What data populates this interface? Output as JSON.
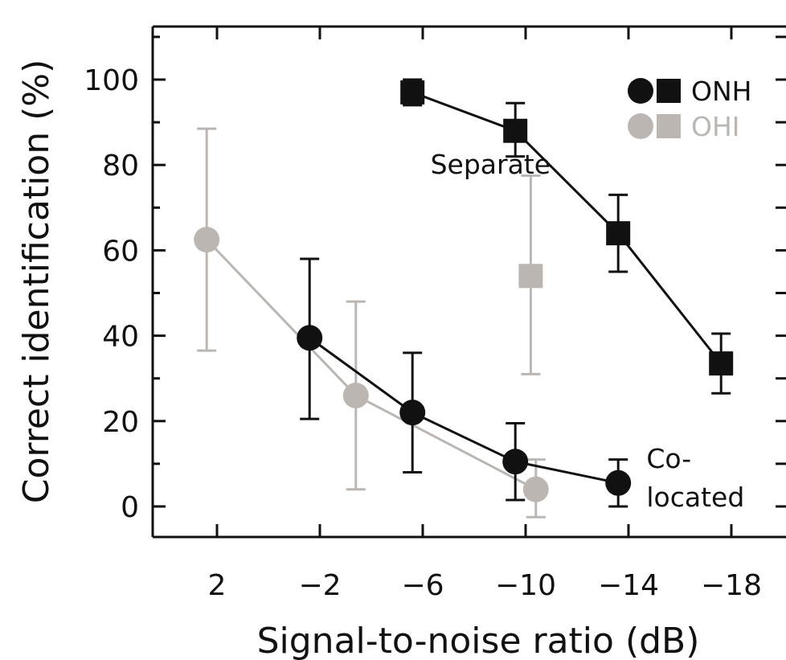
{
  "chart_data": {
    "type": "line",
    "xlabel": "Signal-to-noise ratio (dB)",
    "ylabel": "Correct identification (%)",
    "x_ticks": [
      "2",
      "−2",
      "−6",
      "−10",
      "−14",
      "−18"
    ],
    "y_ticks": [
      "0",
      "20",
      "40",
      "60",
      "80",
      "100"
    ],
    "xlim": [
      4,
      -20
    ],
    "ylim": [
      -8,
      112
    ],
    "x_axis_reversed": true,
    "legend": {
      "placement": "top-right",
      "entries": [
        {
          "label": "ONH",
          "color": "#111111"
        },
        {
          "label": "OHI",
          "color": "#bcb6b3"
        }
      ]
    },
    "annotations": [
      {
        "text": "Separate",
        "x": -6.3,
        "y": 78
      },
      {
        "text": "Co-",
        "x": -14.7,
        "y": 9
      },
      {
        "text": "located",
        "x": -14.7,
        "y": 0
      }
    ],
    "series": [
      {
        "group": "OHI",
        "condition": "Co-located",
        "marker": "circle",
        "color": "#bcb6b3",
        "points": [
          {
            "x": 2.4,
            "y": 62.5,
            "err_low": 36.5,
            "err_high": 88.5
          },
          {
            "x": -3.4,
            "y": 26,
            "err_low": 4,
            "err_high": 48
          },
          {
            "x": -10.4,
            "y": 4,
            "err_low": -2.5,
            "err_high": 11
          }
        ]
      },
      {
        "group": "OHI",
        "condition": "Separate",
        "marker": "square",
        "color": "#bcb6b3",
        "points": [
          {
            "x": -10.2,
            "y": 54,
            "err_low": 31,
            "err_high": 77.5
          }
        ]
      },
      {
        "group": "ONH",
        "condition": "Co-located",
        "marker": "circle",
        "color": "#111111",
        "points": [
          {
            "x": -1.6,
            "y": 39.5,
            "err_low": 20.5,
            "err_high": 58
          },
          {
            "x": -5.6,
            "y": 22,
            "err_low": 8,
            "err_high": 36
          },
          {
            "x": -9.6,
            "y": 10.5,
            "err_low": 1.5,
            "err_high": 19.5
          },
          {
            "x": -13.6,
            "y": 5.5,
            "err_low": 0,
            "err_high": 11
          }
        ]
      },
      {
        "group": "ONH",
        "condition": "Separate",
        "marker": "square",
        "color": "#111111",
        "points": [
          {
            "x": -5.6,
            "y": 97,
            "err_low": 94,
            "err_high": 100
          },
          {
            "x": -9.6,
            "y": 88,
            "err_low": 82,
            "err_high": 94.5
          },
          {
            "x": -13.6,
            "y": 64,
            "err_low": 55,
            "err_high": 73
          },
          {
            "x": -17.6,
            "y": 33.5,
            "err_low": 26.5,
            "err_high": 40.5
          }
        ]
      }
    ]
  }
}
